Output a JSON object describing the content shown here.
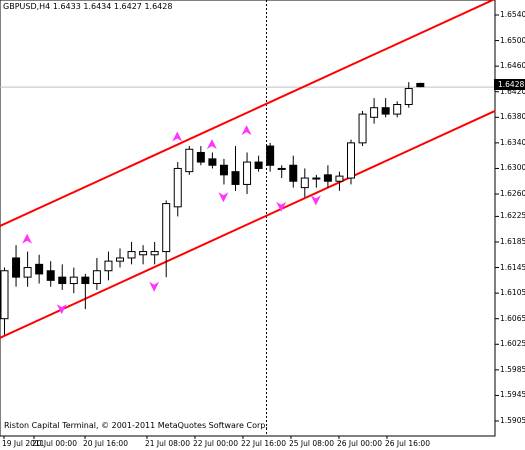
{
  "header": {
    "symbol_period": "GBPUSD,H4",
    "open": "1.6433",
    "high": "1.6434",
    "low": "1.6427",
    "close": "1.6428"
  },
  "footer_text": "Riston Capital Terminal, © 2001-2011 MetaQuotes Software Corp.",
  "current_price": "1.6428",
  "y_axis_labels": [
    "1.6540",
    "1.6500",
    "1.6460",
    "1.6420",
    "1.6380",
    "1.6340",
    "1.6300",
    "1.6260",
    "1.6225",
    "1.6185",
    "1.6145",
    "1.6105",
    "1.6065",
    "1.6025",
    "1.5985",
    "1.5945",
    "1.5905"
  ],
  "x_axis_labels": [
    "19 Jul 2011",
    "20 Jul 00:00",
    "20 Jul 16:00",
    "21 Jul 08:00",
    "22 Jul 00:00",
    "22 Jul 16:00",
    "25 Jul 08:00",
    "26 Jul 00:00",
    "26 Jul 16:00"
  ],
  "colors": {
    "background": "#ffffff",
    "channel_lines": "#ff0000",
    "arrows": "#ff33ff",
    "bull_candle": "#ffffff",
    "bear_candle": "#000000",
    "grid_line": "#c0c0c0"
  },
  "chart_data": {
    "type": "candlestick",
    "symbol": "GBPUSD",
    "timeframe": "H4",
    "ylim": [
      1.5885,
      1.656
    ],
    "ohlc": [
      {
        "o": 1.6065,
        "h": 1.6145,
        "l": 1.604,
        "c": 1.614
      },
      {
        "o": 1.616,
        "h": 1.618,
        "l": 1.6115,
        "c": 1.613
      },
      {
        "o": 1.613,
        "h": 1.617,
        "l": 1.6115,
        "c": 1.6145
      },
      {
        "o": 1.615,
        "h": 1.6165,
        "l": 1.612,
        "c": 1.6135
      },
      {
        "o": 1.614,
        "h": 1.6155,
        "l": 1.6115,
        "c": 1.6125
      },
      {
        "o": 1.613,
        "h": 1.615,
        "l": 1.611,
        "c": 1.612
      },
      {
        "o": 1.612,
        "h": 1.6145,
        "l": 1.6105,
        "c": 1.613
      },
      {
        "o": 1.613,
        "h": 1.6135,
        "l": 1.608,
        "c": 1.612
      },
      {
        "o": 1.612,
        "h": 1.616,
        "l": 1.611,
        "c": 1.614
      },
      {
        "o": 1.614,
        "h": 1.617,
        "l": 1.6125,
        "c": 1.6155
      },
      {
        "o": 1.6155,
        "h": 1.6175,
        "l": 1.6145,
        "c": 1.616
      },
      {
        "o": 1.616,
        "h": 1.6185,
        "l": 1.615,
        "c": 1.617
      },
      {
        "o": 1.6165,
        "h": 1.618,
        "l": 1.615,
        "c": 1.617
      },
      {
        "o": 1.6165,
        "h": 1.6185,
        "l": 1.615,
        "c": 1.617
      },
      {
        "o": 1.617,
        "h": 1.625,
        "l": 1.613,
        "c": 1.6245
      },
      {
        "o": 1.624,
        "h": 1.631,
        "l": 1.6225,
        "c": 1.63
      },
      {
        "o": 1.6295,
        "h": 1.6335,
        "l": 1.629,
        "c": 1.633
      },
      {
        "o": 1.6325,
        "h": 1.6335,
        "l": 1.6305,
        "c": 1.631
      },
      {
        "o": 1.6315,
        "h": 1.6325,
        "l": 1.63,
        "c": 1.6305
      },
      {
        "o": 1.6305,
        "h": 1.6315,
        "l": 1.6275,
        "c": 1.629
      },
      {
        "o": 1.6295,
        "h": 1.6335,
        "l": 1.6265,
        "c": 1.6275
      },
      {
        "o": 1.6275,
        "h": 1.6325,
        "l": 1.626,
        "c": 1.631
      },
      {
        "o": 1.631,
        "h": 1.632,
        "l": 1.6295,
        "c": 1.63
      },
      {
        "o": 1.6335,
        "h": 1.634,
        "l": 1.6295,
        "c": 1.6305
      },
      {
        "o": 1.63,
        "h": 1.6305,
        "l": 1.6285,
        "c": 1.63
      },
      {
        "o": 1.6305,
        "h": 1.632,
        "l": 1.627,
        "c": 1.628
      },
      {
        "o": 1.627,
        "h": 1.63,
        "l": 1.6255,
        "c": 1.6285
      },
      {
        "o": 1.6285,
        "h": 1.629,
        "l": 1.627,
        "c": 1.6285
      },
      {
        "o": 1.629,
        "h": 1.6305,
        "l": 1.627,
        "c": 1.628
      },
      {
        "o": 1.628,
        "h": 1.6295,
        "l": 1.6265,
        "c": 1.6288
      },
      {
        "o": 1.6285,
        "h": 1.6345,
        "l": 1.6275,
        "c": 1.634
      },
      {
        "o": 1.634,
        "h": 1.639,
        "l": 1.6335,
        "c": 1.6385
      },
      {
        "o": 1.638,
        "h": 1.641,
        "l": 1.637,
        "c": 1.6395
      },
      {
        "o": 1.6395,
        "h": 1.641,
        "l": 1.638,
        "c": 1.6385
      },
      {
        "o": 1.6385,
        "h": 1.6405,
        "l": 1.638,
        "c": 1.64
      },
      {
        "o": 1.64,
        "h": 1.6435,
        "l": 1.6395,
        "c": 1.6425
      },
      {
        "o": 1.6433,
        "h": 1.6434,
        "l": 1.6427,
        "c": 1.6428
      }
    ],
    "arrows_up": [
      {
        "bar": 2,
        "price": 1.619
      },
      {
        "bar": 15,
        "price": 1.635
      },
      {
        "bar": 18,
        "price": 1.6338
      },
      {
        "bar": 21,
        "price": 1.636
      }
    ],
    "arrows_down": [
      {
        "bar": 5,
        "price": 1.608
      },
      {
        "bar": 13,
        "price": 1.6115
      },
      {
        "bar": 19,
        "price": 1.6255
      },
      {
        "bar": 24,
        "price": 1.624
      },
      {
        "bar": 27,
        "price": 1.625
      }
    ],
    "channel": {
      "upper": {
        "p1": 1.621,
        "p2": 1.6565
      },
      "lower": {
        "p1": 1.6035,
        "p2": 1.639
      }
    }
  }
}
